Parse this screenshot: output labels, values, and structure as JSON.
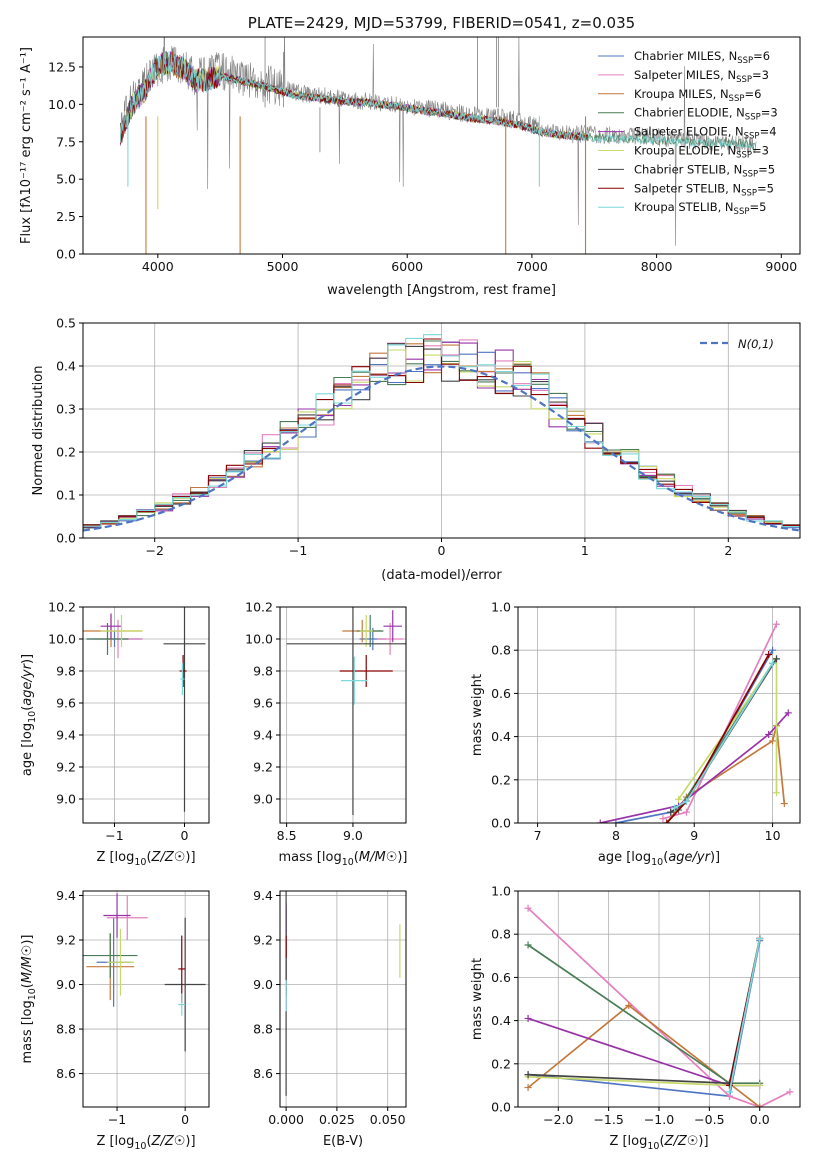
{
  "palette": [
    "#4f74c2",
    "#e57fbf",
    "#c4793c",
    "#4a7d57",
    "#9932a8",
    "#c7d96a",
    "#444444",
    "#8b0000",
    "#7dd8d8"
  ],
  "chart_data": [
    {
      "id": "spectrum",
      "type": "line",
      "title": "PLATE=2429, MJD=53799, FIBERID=0541, z=0.035",
      "xlabel": "wavelength [Angstrom, rest frame]",
      "ylabel": "Flux [fλ10⁻¹⁷ erg cm⁻² s⁻¹ A⁻¹]",
      "xlim": [
        3400,
        9150
      ],
      "ylim": [
        0,
        14.5
      ],
      "xticks": [
        4000,
        5000,
        6000,
        7000,
        8000,
        9000
      ],
      "yticks": [
        0.0,
        2.5,
        5.0,
        7.5,
        10.0,
        12.5
      ],
      "legend_position": "top-right",
      "data_spectrum": {
        "name": "",
        "color": "#808080",
        "x": [
          3700,
          3800,
          3900,
          4000,
          4100,
          4200,
          4300,
          4400,
          4500,
          4700,
          4900,
          5100,
          5300,
          5500,
          5700,
          5900,
          6100,
          6300,
          6500,
          6700,
          6900,
          7100,
          7300,
          7500,
          7700,
          7900,
          8100,
          8300,
          8500,
          8700,
          8800
        ],
        "y": [
          8.5,
          10.5,
          11.5,
          12.5,
          12.8,
          12.5,
          11.8,
          12.0,
          12.3,
          11.8,
          11.3,
          10.8,
          10.6,
          10.3,
          10.2,
          10.0,
          9.8,
          9.6,
          9.3,
          9.2,
          8.9,
          8.3,
          8.0,
          8.0,
          7.9,
          7.9,
          7.7,
          7.6,
          7.4,
          7.3,
          7.4
        ]
      },
      "series": [
        {
          "name": "Chabrier MILES, N",
          "sub": "SSP",
          "suffix": "=6",
          "color": "#4f74c2"
        },
        {
          "name": "Salpeter MILES, N",
          "sub": "SSP",
          "suffix": "=3",
          "color": "#e57fbf"
        },
        {
          "name": "Kroupa MILES, N",
          "sub": "SSP",
          "suffix": "=6",
          "color": "#c4793c"
        },
        {
          "name": "Chabrier ELODIE, N",
          "sub": "SSP",
          "suffix": "=3",
          "color": "#4a7d57"
        },
        {
          "name": "Salpeter ELODIE, N",
          "sub": "SSP",
          "suffix": "=4",
          "color": "#9932a8"
        },
        {
          "name": "Kroupa ELODIE, N",
          "sub": "SSP",
          "suffix": "=3",
          "color": "#c7d96a"
        },
        {
          "name": "Chabrier STELIB, N",
          "sub": "SSP",
          "suffix": "=5",
          "color": "#444444"
        },
        {
          "name": "Salpeter STELIB, N",
          "sub": "SSP",
          "suffix": "=5",
          "color": "#8b0000"
        },
        {
          "name": "Kroupa STELIB, N",
          "sub": "SSP",
          "suffix": "=5",
          "color": "#7dd8d8"
        }
      ],
      "model_x": [
        3700,
        3800,
        3900,
        4000,
        4100,
        4200,
        4300,
        4400,
        4500,
        4700,
        4900,
        5100,
        5300,
        5500,
        5700,
        5900,
        6100,
        6300,
        6500,
        6700,
        6900,
        7100,
        7300,
        7450
      ],
      "model_y": [
        8.0,
        10.0,
        11.0,
        12.6,
        12.8,
        12.4,
        11.6,
        11.6,
        11.9,
        11.5,
        11.1,
        10.6,
        10.4,
        10.2,
        10.1,
        9.9,
        9.6,
        9.4,
        9.1,
        8.9,
        8.6,
        8.1,
        7.9,
        7.8
      ]
    },
    {
      "id": "residuals",
      "type": "histogram",
      "title": "",
      "xlabel": "(data-model)/error",
      "ylabel": "Normed distribution",
      "xlim": [
        -2.5,
        2.5
      ],
      "ylim": [
        0,
        0.5
      ],
      "xticks": [
        -2,
        -1,
        0,
        1,
        2
      ],
      "yticks": [
        0.0,
        0.1,
        0.2,
        0.3,
        0.4,
        0.5
      ],
      "bin_width": 0.125,
      "legend_position": "top-right",
      "reference_curve": {
        "name": "N(0,1)",
        "type": "gaussian",
        "mean": 0,
        "sigma": 1,
        "color": "#4f74c2"
      }
    },
    {
      "id": "age-vs-Z",
      "type": "scatter",
      "xlabel": "Z [log10(Z/Z☉)]",
      "ylabel": "age  [log10(age/yr)]",
      "xlim": [
        -1.45,
        0.35
      ],
      "ylim": [
        8.85,
        10.2
      ],
      "xticks": [
        -1,
        0
      ],
      "yticks": [
        9.0,
        9.2,
        9.4,
        9.6,
        9.8,
        10.0,
        10.2
      ],
      "points": [
        {
          "x": -1.0,
          "y": 10.0,
          "xerr": 0.4,
          "yerr": 0.05,
          "c": 0
        },
        {
          "x": -0.95,
          "y": 10.0,
          "xerr": 0.35,
          "yerr": 0.12,
          "c": 1
        },
        {
          "x": -1.05,
          "y": 10.05,
          "xerr": 0.45,
          "yerr": 0.1,
          "c": 2
        },
        {
          "x": -1.1,
          "y": 10.0,
          "xerr": 0.3,
          "yerr": 0.1,
          "c": 3
        },
        {
          "x": -1.05,
          "y": 10.08,
          "xerr": 0.15,
          "yerr": 0.08,
          "c": 4
        },
        {
          "x": -0.9,
          "y": 10.05,
          "xerr": 0.3,
          "yerr": 0.1,
          "c": 5
        },
        {
          "x": 0.0,
          "y": 9.97,
          "xerr": 0.3,
          "yerr": 1.05,
          "c": 6
        },
        {
          "x": -0.02,
          "y": 9.8,
          "xerr": 0.05,
          "yerr": 0.1,
          "c": 7
        },
        {
          "x": -0.03,
          "y": 9.75,
          "xerr": 0.03,
          "yerr": 0.1,
          "c": 8
        }
      ]
    },
    {
      "id": "age-vs-mass",
      "type": "scatter",
      "xlabel": "mass [log10(M/M☉)]",
      "ylabel": "",
      "xlim": [
        8.45,
        9.4
      ],
      "ylim": [
        8.85,
        10.2
      ],
      "xticks": [
        8.5,
        9.0
      ],
      "yticks": [
        9.0,
        9.2,
        9.4,
        9.6,
        9.8,
        10.0,
        10.2
      ],
      "points": [
        {
          "x": 9.15,
          "y": 10.0,
          "xerr": 0.1,
          "yerr": 0.07,
          "c": 0
        },
        {
          "x": 9.28,
          "y": 10.0,
          "xerr": 0.1,
          "yerr": 0.1,
          "c": 1
        },
        {
          "x": 9.07,
          "y": 10.05,
          "xerr": 0.15,
          "yerr": 0.07,
          "c": 2
        },
        {
          "x": 9.13,
          "y": 10.05,
          "xerr": 0.1,
          "yerr": 0.1,
          "c": 3
        },
        {
          "x": 9.3,
          "y": 10.08,
          "xerr": 0.07,
          "yerr": 0.1,
          "c": 4
        },
        {
          "x": 9.1,
          "y": 10.05,
          "xerr": 0.05,
          "yerr": 0.1,
          "c": 5
        },
        {
          "x": 9.0,
          "y": 9.97,
          "xerr": 0.5,
          "yerr": 1.07,
          "c": 6
        },
        {
          "x": 9.1,
          "y": 9.8,
          "xerr": 0.2,
          "yerr": 0.1,
          "c": 7
        },
        {
          "x": 9.01,
          "y": 9.74,
          "xerr": 0.1,
          "yerr": 0.15,
          "c": 8
        }
      ]
    },
    {
      "id": "mass-weight-vs-age",
      "type": "line",
      "xlabel": "age  [log10(age/yr)]",
      "ylabel": "mass weight",
      "xlim": [
        6.75,
        10.35
      ],
      "ylim": [
        0,
        1.0
      ],
      "xticks": [
        7,
        8,
        9,
        10
      ],
      "yticks": [
        0.0,
        0.2,
        0.4,
        0.6,
        0.8,
        1.0
      ],
      "lines": [
        {
          "c": 0,
          "x": [
            8.0,
            8.7,
            8.9,
            10.0
          ],
          "y": [
            0.0,
            0.05,
            0.1,
            0.8
          ]
        },
        {
          "c": 1,
          "x": [
            8.6,
            8.9,
            10.05
          ],
          "y": [
            0.02,
            0.05,
            0.92
          ]
        },
        {
          "c": 2,
          "x": [
            8.65,
            8.9,
            10.0,
            10.05,
            10.15
          ],
          "y": [
            0.0,
            0.12,
            0.38,
            0.45,
            0.09
          ]
        },
        {
          "c": 3,
          "x": [
            8.8,
            10.0
          ],
          "y": [
            0.06,
            0.74
          ]
        },
        {
          "c": 4,
          "x": [
            7.8,
            8.8,
            9.95,
            10.2
          ],
          "y": [
            0.0,
            0.08,
            0.41,
            0.51
          ]
        },
        {
          "c": 5,
          "x": [
            8.8,
            10.05,
            10.05
          ],
          "y": [
            0.11,
            0.76,
            0.14
          ]
        },
        {
          "c": 6,
          "x": [
            8.7,
            8.9,
            10.05
          ],
          "y": [
            0.05,
            0.1,
            0.76
          ]
        },
        {
          "c": 7,
          "x": [
            8.65,
            8.9,
            9.95
          ],
          "y": [
            0.0,
            0.1,
            0.78
          ]
        },
        {
          "c": 8,
          "x": [
            8.75,
            8.9,
            10.0
          ],
          "y": [
            0.07,
            0.1,
            0.74
          ]
        }
      ]
    },
    {
      "id": "mass-vs-Z",
      "type": "scatter",
      "xlabel": "Z [log10(Z/Z☉)]",
      "ylabel": "mass [log10(M/M☉)]",
      "xlim": [
        -1.5,
        0.35
      ],
      "ylim": [
        8.45,
        9.42
      ],
      "xticks": [
        -1,
        0
      ],
      "yticks": [
        8.6,
        8.8,
        9.0,
        9.2,
        9.4
      ],
      "points": [
        {
          "x": -1.05,
          "y": 9.1,
          "xerr": 0.25,
          "yerr": 0.2,
          "c": 0
        },
        {
          "x": -0.85,
          "y": 9.3,
          "xerr": 0.3,
          "yerr": 0.1,
          "c": 1
        },
        {
          "x": -1.1,
          "y": 9.08,
          "xerr": 0.35,
          "yerr": 0.15,
          "c": 2
        },
        {
          "x": -1.1,
          "y": 9.13,
          "xerr": 0.4,
          "yerr": 0.1,
          "c": 3
        },
        {
          "x": -1.0,
          "y": 9.31,
          "xerr": 0.2,
          "yerr": 0.1,
          "c": 4
        },
        {
          "x": -0.95,
          "y": 9.1,
          "xerr": 0.2,
          "yerr": 0.15,
          "c": 5
        },
        {
          "x": 0.0,
          "y": 9.0,
          "xerr": 0.3,
          "yerr": 0.3,
          "c": 6
        },
        {
          "x": -0.05,
          "y": 9.07,
          "xerr": 0.05,
          "yerr": 0.15,
          "c": 7
        },
        {
          "x": -0.05,
          "y": 8.91,
          "xerr": 0.05,
          "yerr": 0.05,
          "c": 8
        }
      ]
    },
    {
      "id": "mass-vs-EBV",
      "type": "scatter",
      "xlabel": "E(B-V)",
      "ylabel": "",
      "xlim": [
        -0.003,
        0.059
      ],
      "ylim": [
        8.45,
        9.42
      ],
      "xticks": [
        0.0,
        0.025,
        0.05
      ],
      "yticks": [
        8.6,
        8.8,
        9.0,
        9.2,
        9.4
      ],
      "points": [
        {
          "x": 0.0,
          "y": 9.1,
          "xerr": 0,
          "yerr": 0.15,
          "c": 0
        },
        {
          "x": 0.0,
          "y": 9.25,
          "xerr": 0,
          "yerr": 0.1,
          "c": 1
        },
        {
          "x": 0.0,
          "y": 9.05,
          "xerr": 0,
          "yerr": 0.1,
          "c": 2
        },
        {
          "x": 0.0,
          "y": 9.13,
          "xerr": 0,
          "yerr": 0.1,
          "c": 3
        },
        {
          "x": 0.0,
          "y": 9.3,
          "xerr": 0,
          "yerr": 0.07,
          "c": 4
        },
        {
          "x": 0.056,
          "y": 9.15,
          "xerr": 0,
          "yerr": 0.12,
          "c": 5
        },
        {
          "x": 0.0,
          "y": 9.0,
          "xerr": 0,
          "yerr": 0.5,
          "c": 6
        },
        {
          "x": 0.0,
          "y": 9.17,
          "xerr": 0,
          "yerr": 0.05,
          "c": 7
        },
        {
          "x": 0.0,
          "y": 8.95,
          "xerr": 0,
          "yerr": 0.07,
          "c": 8
        }
      ]
    },
    {
      "id": "mass-weight-vs-Z",
      "type": "line",
      "xlabel": "Z [log10(Z/Z☉)]",
      "ylabel": "mass weight",
      "xlim": [
        -2.4,
        0.4
      ],
      "ylim": [
        0,
        1.0
      ],
      "xticks": [
        -2.0,
        -1.5,
        -1.0,
        -0.5,
        0.0
      ],
      "yticks": [
        0.0,
        0.2,
        0.4,
        0.6,
        0.8,
        1.0
      ],
      "lines": [
        {
          "c": 0,
          "x": [
            -2.3,
            -0.3,
            0.0
          ],
          "y": [
            0.15,
            0.05,
            0.77
          ]
        },
        {
          "c": 1,
          "x": [
            -2.3,
            -0.3,
            0.0,
            0.3
          ],
          "y": [
            0.92,
            0.05,
            0.0,
            0.07
          ]
        },
        {
          "c": 2,
          "x": [
            -2.3,
            -1.3,
            0.0
          ],
          "y": [
            0.09,
            0.47,
            0.0
          ]
        },
        {
          "c": 3,
          "x": [
            -2.3,
            -0.3,
            0.0
          ],
          "y": [
            0.75,
            0.11,
            0.11
          ]
        },
        {
          "c": 4,
          "x": [
            -2.3,
            -0.3,
            0.0
          ],
          "y": [
            0.41,
            0.1,
            0.1
          ]
        },
        {
          "c": 5,
          "x": [
            -2.3,
            -0.3,
            0.0
          ],
          "y": [
            0.14,
            0.1,
            0.1
          ]
        },
        {
          "c": 6,
          "x": [
            -2.3,
            -0.3,
            0.0
          ],
          "y": [
            0.15,
            0.11,
            0.78
          ]
        },
        {
          "c": 7,
          "x": [
            -0.3,
            0.0
          ],
          "y": [
            0.1,
            0.78
          ]
        },
        {
          "c": 8,
          "x": [
            -0.3,
            0.0
          ],
          "y": [
            0.07,
            0.78
          ]
        }
      ]
    }
  ]
}
